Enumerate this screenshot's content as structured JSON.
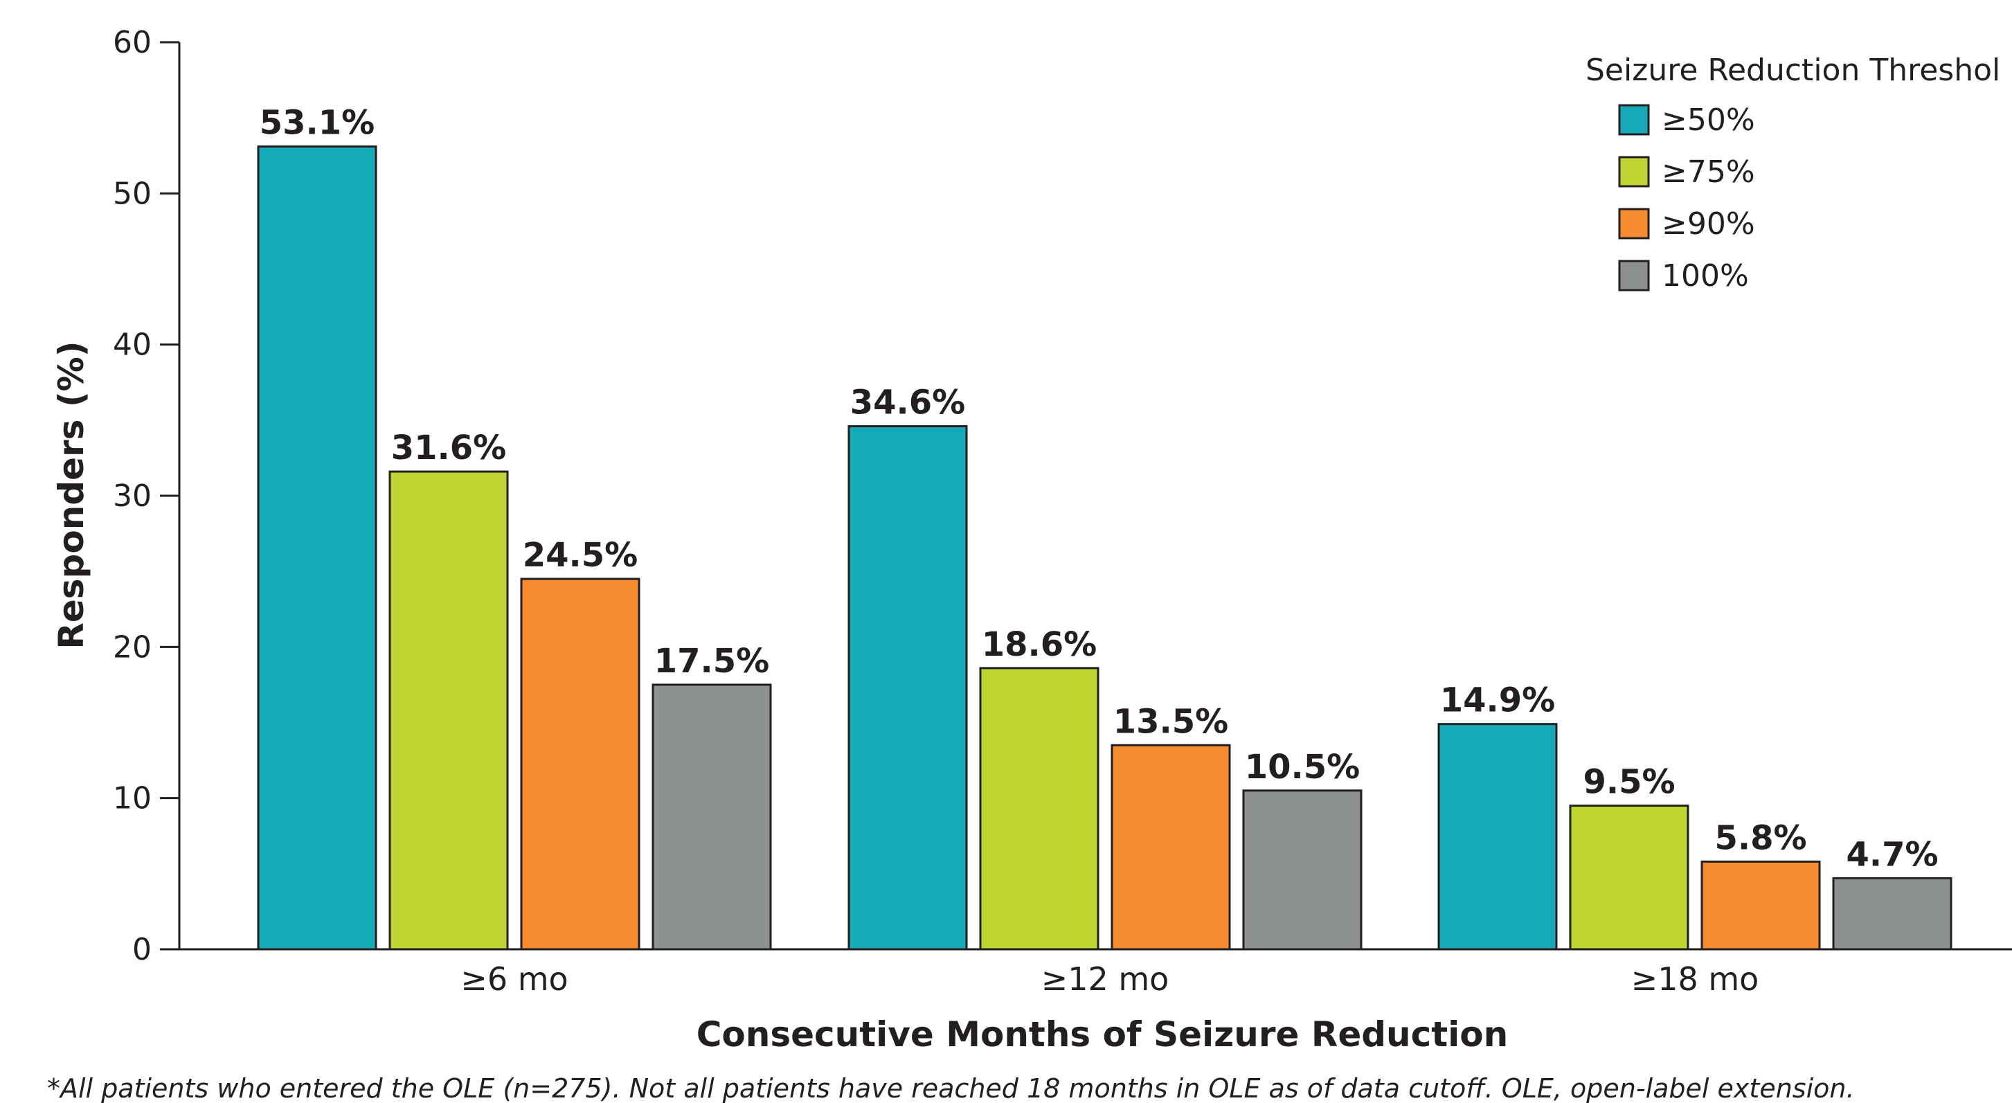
{
  "chart_data": {
    "type": "bar",
    "categories": [
      "≥6 mo",
      "≥12  mo",
      "≥18  mo"
    ],
    "series": [
      {
        "name": "≥50%",
        "values": [
          53.1,
          34.6,
          14.9
        ],
        "labels": [
          "53.1%",
          "34.6%",
          "14.9%"
        ],
        "color": "#16a9b8"
      },
      {
        "name": "≥75%",
        "values": [
          31.6,
          18.6,
          9.5
        ],
        "labels": [
          "31.6%",
          "18.6%",
          "9.5%"
        ],
        "color": "#bed532"
      },
      {
        "name": "≥90%",
        "values": [
          24.5,
          13.5,
          5.8
        ],
        "labels": [
          "24.5%",
          "13.5%",
          "5.8%"
        ],
        "color": "#f68b2f"
      },
      {
        "name": "100%",
        "values": [
          17.5,
          10.5,
          4.7
        ],
        "labels": [
          "17.5%",
          "10.5%",
          "4.7%"
        ],
        "color": "#8d9192"
      }
    ],
    "xlabel": "Consecutive Months of Seizure Reduction",
    "ylabel": "Responders (%)",
    "ylim": [
      0,
      60
    ],
    "yticks": [
      0,
      10,
      20,
      30,
      40,
      50,
      60
    ],
    "legend_title": "Seizure Reduction Threshol",
    "legend_position": "top-right",
    "grid": false
  },
  "footnote": "*All patients who entered the OLE (n=275). Not all patients have reached 18 months in OLE as of data cutoff. OLE, open-label extension."
}
